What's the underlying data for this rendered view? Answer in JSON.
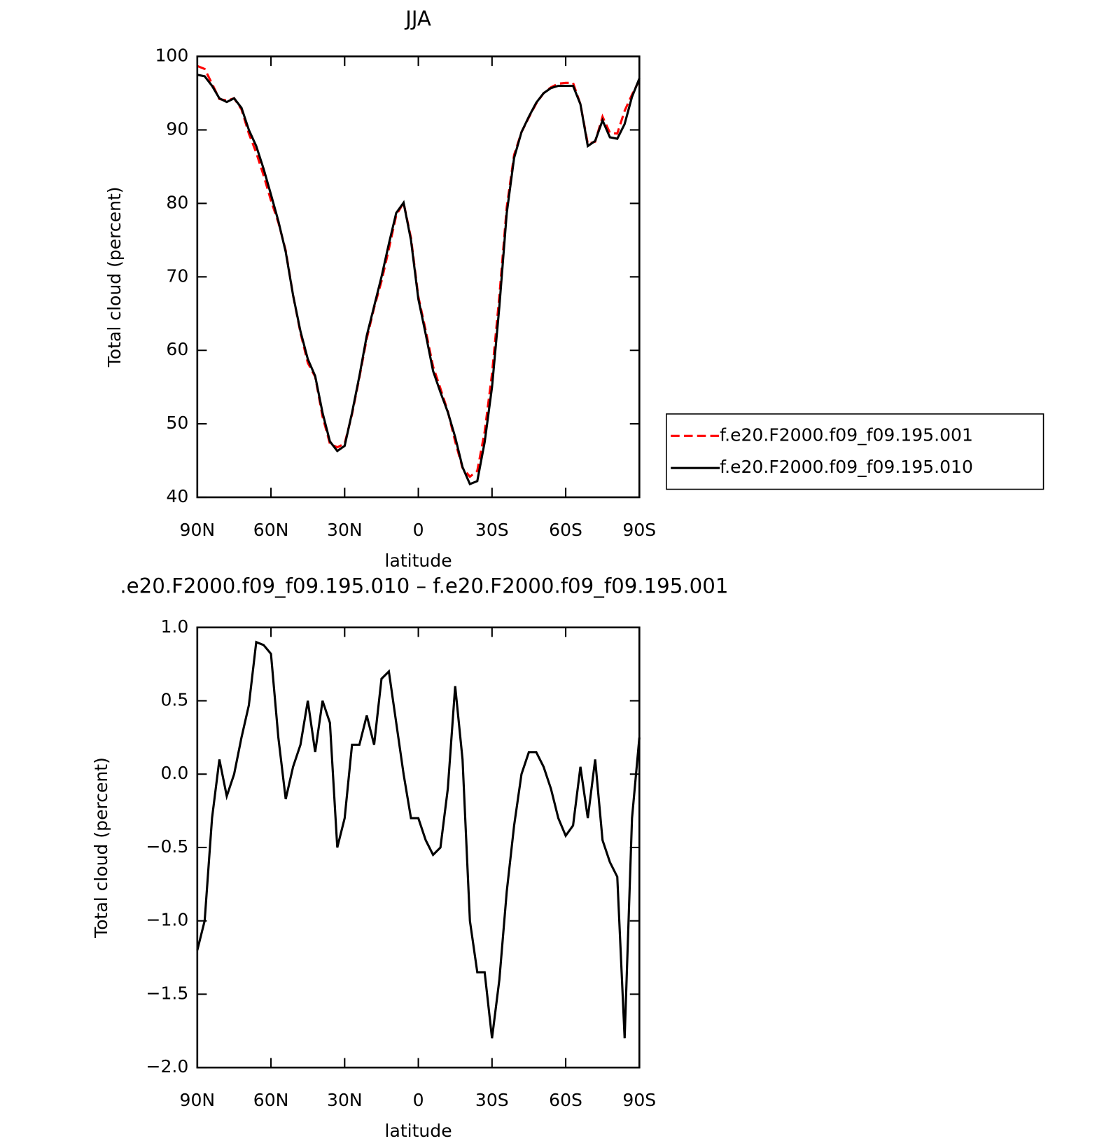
{
  "chart_data": [
    {
      "type": "line",
      "title": "JJA",
      "xlabel": "latitude",
      "ylabel": "Total cloud (percent)",
      "x": [
        90,
        87,
        84,
        81,
        78,
        75,
        72,
        69,
        66,
        63,
        60,
        57,
        54,
        51,
        48,
        45,
        42,
        39,
        36,
        33,
        30,
        27,
        24,
        21,
        18,
        15,
        12,
        9,
        6,
        3,
        0,
        -3,
        -6,
        -9,
        -12,
        -15,
        -18,
        -21,
        -24,
        -27,
        -30,
        -33,
        -36,
        -39,
        -42,
        -45,
        -48,
        -51,
        -54,
        -57,
        -60,
        -63,
        -66,
        -69,
        -72,
        -75,
        -78,
        -81,
        -84,
        -87,
        -90
      ],
      "series": [
        {
          "name": "f.e20.F2000.f09_f09.195.001",
          "color": "#ff0000",
          "linestyle": "dashed",
          "values": [
            98.7,
            98.3,
            96.3,
            94.2,
            94.0,
            94.3,
            92.8,
            89.5,
            86.9,
            83.8,
            80.4,
            77.4,
            73.6,
            67.5,
            62.4,
            58.3,
            56.4,
            51.0,
            47.3,
            46.8,
            47.3,
            51.3,
            56.3,
            61.6,
            65.8,
            69.4,
            73.8,
            78.4,
            80.1,
            75.3,
            67.3,
            62.7,
            57.8,
            54.8,
            51.7,
            47.6,
            44.0,
            42.8,
            43.6,
            48.9,
            56.8,
            67.4,
            79.5,
            86.6,
            89.7,
            91.7,
            93.6,
            95.0,
            95.8,
            96.3,
            96.4,
            96.4,
            93.5,
            88.1,
            88.4,
            91.8,
            89.6,
            89.5,
            92.6,
            94.8,
            96.8
          ]
        },
        {
          "name": "f.e20.F2000.f09_f09.195.010",
          "color": "#000000",
          "linestyle": "solid",
          "values": [
            97.5,
            97.3,
            96.0,
            94.3,
            93.8,
            94.3,
            93.0,
            90.0,
            87.8,
            84.7,
            81.2,
            77.6,
            73.4,
            67.5,
            62.6,
            58.8,
            56.5,
            51.5,
            47.6,
            46.3,
            47.0,
            51.5,
            56.5,
            62.0,
            66.0,
            70.0,
            74.5,
            78.7,
            80.1,
            75.0,
            67.0,
            62.2,
            57.2,
            54.3,
            51.6,
            48.2,
            44.1,
            41.8,
            42.2,
            47.5,
            55.0,
            66.0,
            78.7,
            86.2,
            89.7,
            91.8,
            93.7,
            95.0,
            95.7,
            96.0,
            96.0,
            96.0,
            93.5,
            87.8,
            88.5,
            91.3,
            89.0,
            88.8,
            90.8,
            94.5,
            97.0
          ]
        }
      ],
      "xlim": [
        90,
        -90
      ],
      "xticks": [
        {
          "value": 90,
          "label": "90N"
        },
        {
          "value": 60,
          "label": "60N"
        },
        {
          "value": 30,
          "label": "30N"
        },
        0,
        {
          "value": -30,
          "label": "30S"
        },
        {
          "value": -60,
          "label": "60S"
        },
        {
          "value": -90,
          "label": "90S"
        }
      ],
      "ylim": [
        40,
        100
      ],
      "yticks": [
        40,
        50,
        60,
        70,
        80,
        90,
        100
      ],
      "grid": false,
      "legend": "right"
    },
    {
      "type": "line",
      "title": ".e20.F2000.f09_f09.195.010 – f.e20.F2000.f09_f09.195.001",
      "xlabel": "latitude",
      "ylabel": "Total cloud (percent)",
      "x": [
        90,
        87,
        84,
        81,
        78,
        75,
        72,
        69,
        66,
        63,
        60,
        57,
        54,
        51,
        48,
        45,
        42,
        39,
        36,
        33,
        30,
        27,
        24,
        21,
        18,
        15,
        12,
        9,
        6,
        3,
        0,
        -3,
        -6,
        -9,
        -12,
        -15,
        -18,
        -21,
        -24,
        -27,
        -30,
        -33,
        -36,
        -39,
        -42,
        -45,
        -48,
        -51,
        -54,
        -57,
        -60,
        -63,
        -66,
        -69,
        -72,
        -75,
        -78,
        -81,
        -84,
        -87,
        -90
      ],
      "series": [
        {
          "color": "#000000",
          "linestyle": "solid",
          "values": [
            -1.2,
            -1.0,
            -0.3,
            0.1,
            -0.15,
            0.0,
            0.25,
            0.47,
            0.9,
            0.88,
            0.82,
            0.25,
            -0.17,
            0.05,
            0.2,
            0.5,
            0.15,
            0.5,
            0.35,
            -0.5,
            -0.3,
            0.2,
            0.2,
            0.4,
            0.2,
            0.65,
            0.7,
            0.35,
            0.0,
            -0.3,
            -0.3,
            -0.45,
            -0.55,
            -0.5,
            -0.1,
            0.6,
            0.1,
            -1.0,
            -1.35,
            -1.35,
            -1.8,
            -1.4,
            -0.8,
            -0.35,
            0.0,
            0.15,
            0.15,
            0.05,
            -0.1,
            -0.3,
            -0.42,
            -0.35,
            0.05,
            -0.3,
            0.1,
            -0.45,
            -0.6,
            -0.7,
            -1.8,
            -0.3,
            0.25
          ]
        }
      ],
      "xlim": [
        90,
        -90
      ],
      "xticks": [
        {
          "value": 90,
          "label": "90N"
        },
        {
          "value": 60,
          "label": "60N"
        },
        {
          "value": 30,
          "label": "30N"
        },
        0,
        {
          "value": -30,
          "label": "30S"
        },
        {
          "value": -60,
          "label": "60S"
        },
        {
          "value": -90,
          "label": "90S"
        }
      ],
      "ylim": [
        -2.0,
        1.0
      ],
      "yticks": [
        {
          "value": -2.0,
          "label": "−2.0"
        },
        {
          "value": -1.5,
          "label": "−1.5"
        },
        {
          "value": -1.0,
          "label": "−1.0"
        },
        {
          "value": -0.5,
          "label": "−0.5"
        },
        {
          "value": 0.0,
          "label": "0.0"
        },
        {
          "value": 0.5,
          "label": "0.5"
        },
        {
          "value": 1.0,
          "label": "1.0"
        }
      ],
      "grid": false
    }
  ]
}
